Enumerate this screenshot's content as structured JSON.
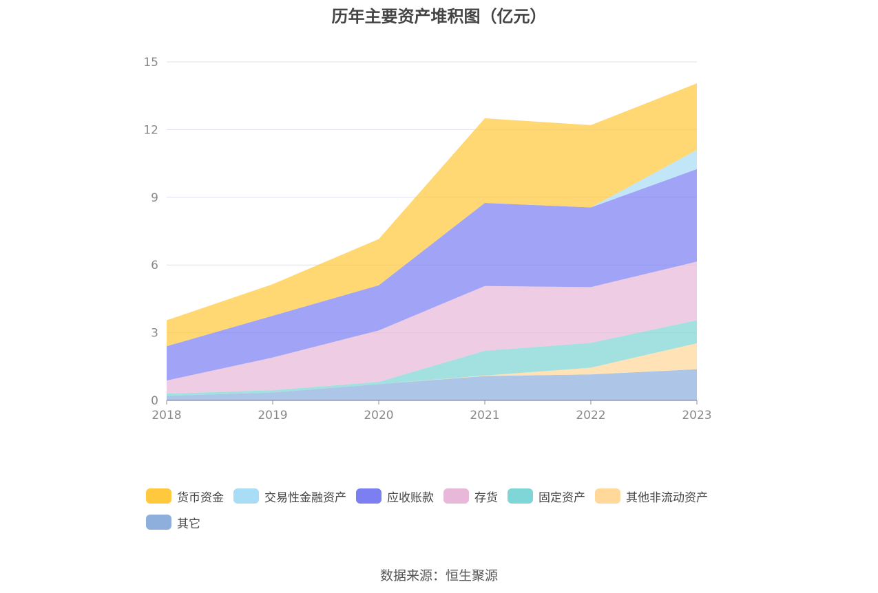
{
  "chart_data": {
    "type": "area",
    "stacked": true,
    "title": "历年主要资产堆积图（亿元）",
    "source": "数据来源：恒生聚源",
    "categories": [
      "2018",
      "2019",
      "2020",
      "2021",
      "2022",
      "2023"
    ],
    "ylim": [
      0,
      15
    ],
    "yticks": [
      "0",
      "3",
      "6",
      "9",
      "12",
      "15"
    ],
    "grid": true,
    "legend_position": "bottom",
    "series": [
      {
        "name": "其它",
        "color": "#8EAEDC",
        "values": [
          0.2,
          0.35,
          0.72,
          1.08,
          1.15,
          1.38
        ]
      },
      {
        "name": "其他非流动资产",
        "color": "#FFD89A",
        "values": [
          0.0,
          0.0,
          0.0,
          0.02,
          0.3,
          1.15
        ]
      },
      {
        "name": "固定资产",
        "color": "#7FD6D6",
        "values": [
          0.1,
          0.1,
          0.1,
          1.1,
          1.1,
          1.02
        ]
      },
      {
        "name": "存货",
        "color": "#E8B8D8",
        "values": [
          0.58,
          1.45,
          2.28,
          2.87,
          2.47,
          2.6
        ]
      },
      {
        "name": "应收账款",
        "color": "#7B7FF2",
        "values": [
          1.52,
          1.85,
          2.0,
          3.68,
          3.53,
          4.1
        ]
      },
      {
        "name": "交易性金融资产",
        "color": "#A9DDF5",
        "values": [
          0.0,
          0.0,
          0.0,
          0.0,
          0.0,
          0.85
        ]
      },
      {
        "name": "货币资金",
        "color": "#FFC83D",
        "values": [
          1.15,
          1.4,
          2.05,
          3.75,
          3.65,
          2.95
        ]
      }
    ],
    "legend_order": [
      "货币资金",
      "交易性金融资产",
      "应收账款",
      "存货",
      "固定资产",
      "其他非流动资产",
      "其它"
    ]
  }
}
